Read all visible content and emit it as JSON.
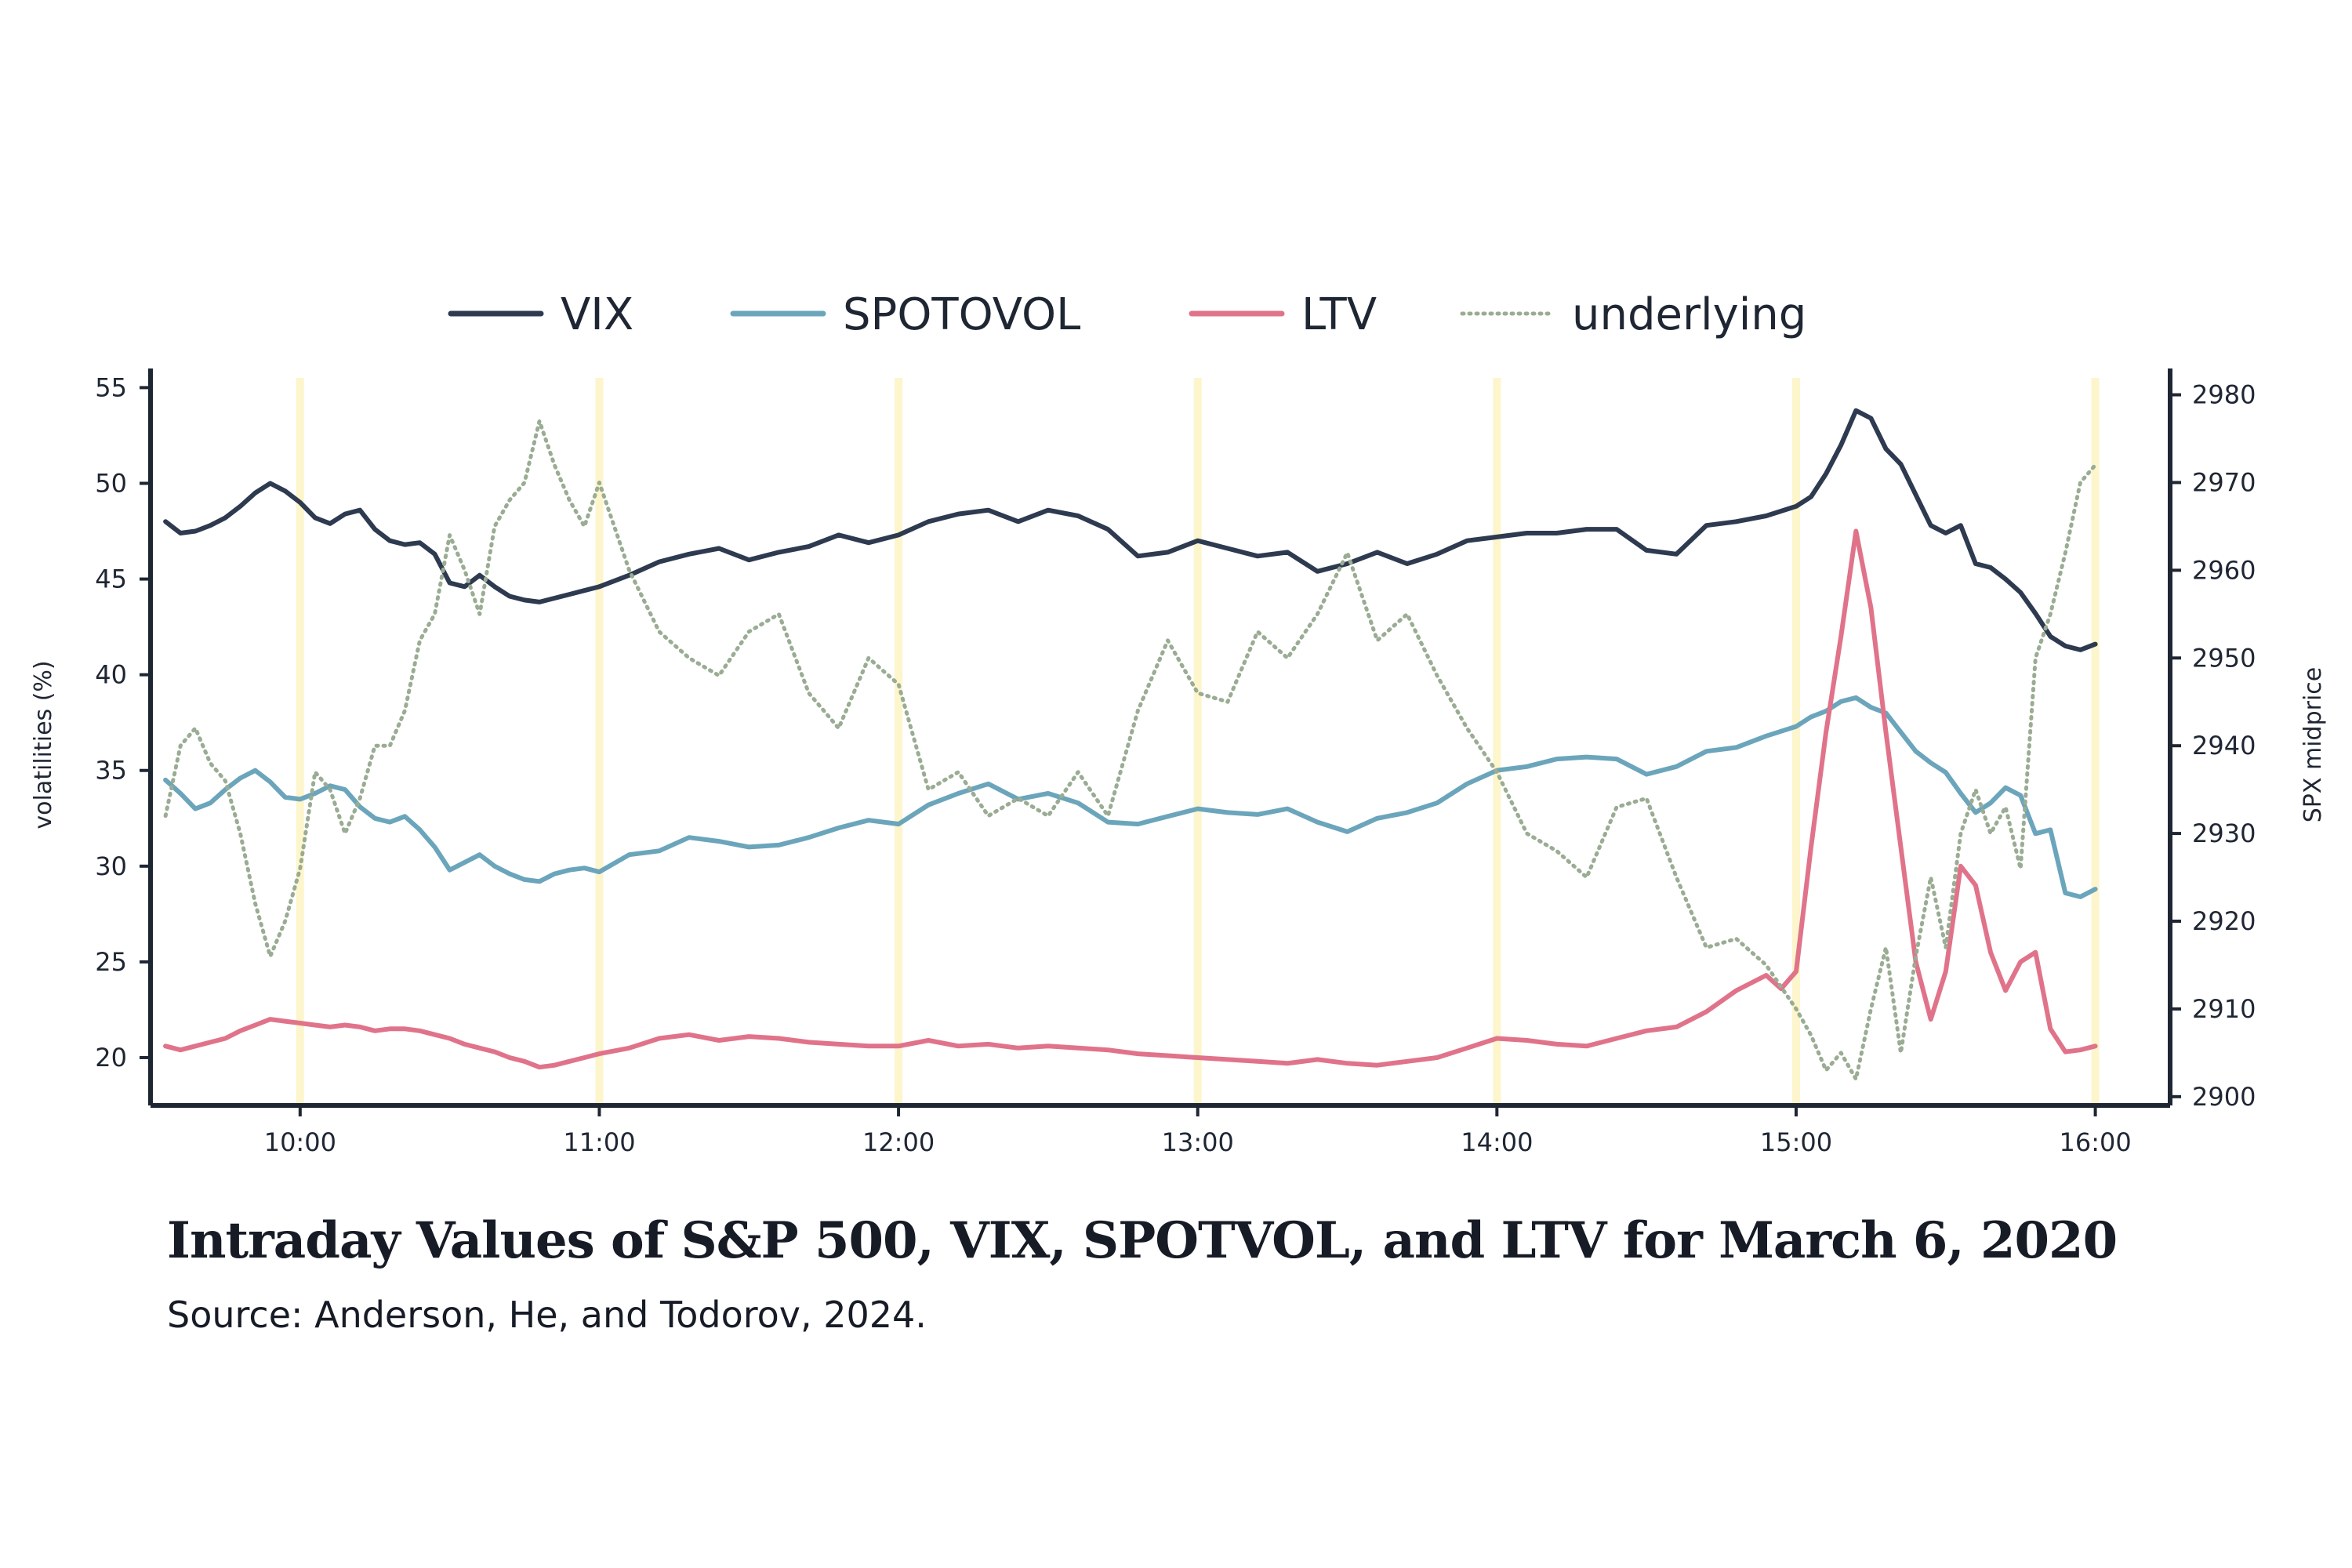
{
  "chart_data": {
    "type": "line",
    "title": "Intraday Values of S&P 500, VIX, SPOTVOL, and LTV for March 6, 2020",
    "source": "Source: Anderson, He, and Todorov, 2024.",
    "xlabel": "",
    "ylabel": "volatilities (%)",
    "y2label": "SPX midprice",
    "xlim": [
      9.5,
      16.25
    ],
    "ylim": [
      17.5,
      56
    ],
    "y2lim": [
      2899,
      2983
    ],
    "x_ticks": [
      10,
      11,
      12,
      13,
      14,
      15,
      16
    ],
    "x_tick_labels": [
      "10:00",
      "11:00",
      "12:00",
      "13:00",
      "14:00",
      "15:00",
      "16:00"
    ],
    "y_ticks": [
      20,
      25,
      30,
      35,
      40,
      45,
      50,
      55
    ],
    "y_tick_labels": [
      "20",
      "25",
      "30",
      "35",
      "40",
      "45",
      "50",
      "55"
    ],
    "y2_ticks": [
      2900,
      2910,
      2920,
      2930,
      2940,
      2950,
      2960,
      2970,
      2980
    ],
    "y2_tick_labels": [
      "2900",
      "2910",
      "2920",
      "2930",
      "2940",
      "2950",
      "2960",
      "2970",
      "2980"
    ],
    "highlight_x": [
      10,
      11,
      12,
      13,
      14,
      15,
      16
    ],
    "highlight_color": "#fdf5cc",
    "legend": [
      "VIX",
      "SPOTOVOL",
      "LTV",
      "underlying"
    ],
    "legend_position": "top-center",
    "series": [
      {
        "name": "VIX",
        "axis": "left",
        "color": "#2d3a50",
        "style": "solid",
        "x": [
          9.55,
          9.6,
          9.65,
          9.7,
          9.75,
          9.8,
          9.85,
          9.9,
          9.95,
          10.0,
          10.05,
          10.1,
          10.15,
          10.2,
          10.25,
          10.3,
          10.35,
          10.4,
          10.45,
          10.5,
          10.55,
          10.6,
          10.65,
          10.7,
          10.75,
          10.8,
          10.85,
          10.9,
          10.95,
          11.0,
          11.1,
          11.2,
          11.3,
          11.4,
          11.5,
          11.6,
          11.7,
          11.8,
          11.9,
          12.0,
          12.1,
          12.2,
          12.3,
          12.4,
          12.5,
          12.6,
          12.7,
          12.8,
          12.9,
          13.0,
          13.1,
          13.2,
          13.3,
          13.4,
          13.5,
          13.6,
          13.7,
          13.8,
          13.9,
          14.0,
          14.1,
          14.2,
          14.3,
          14.4,
          14.5,
          14.6,
          14.7,
          14.8,
          14.9,
          15.0,
          15.05,
          15.1,
          15.15,
          15.2,
          15.25,
          15.3,
          15.35,
          15.4,
          15.45,
          15.5,
          15.55,
          15.6,
          15.65,
          15.7,
          15.75,
          15.8,
          15.85,
          15.9,
          15.95,
          16.0
        ],
        "values": [
          48,
          47.4,
          47.5,
          47.8,
          48.2,
          48.8,
          49.5,
          50.0,
          49.6,
          49.0,
          48.2,
          47.9,
          48.4,
          48.6,
          47.6,
          47.0,
          46.8,
          46.9,
          46.3,
          44.8,
          44.6,
          45.2,
          44.6,
          44.1,
          43.9,
          43.8,
          44.0,
          44.2,
          44.4,
          44.6,
          45.2,
          45.9,
          46.3,
          46.6,
          46.0,
          46.4,
          46.7,
          47.3,
          46.9,
          47.3,
          48.0,
          48.4,
          48.6,
          48.0,
          48.6,
          48.3,
          47.6,
          46.2,
          46.4,
          47.0,
          46.6,
          46.2,
          46.4,
          45.4,
          45.8,
          46.4,
          45.8,
          46.3,
          47.0,
          47.2,
          47.4,
          47.4,
          47.6,
          47.6,
          46.5,
          46.3,
          47.8,
          48.0,
          48.3,
          48.8,
          49.3,
          50.5,
          52.0,
          53.8,
          53.4,
          51.8,
          51.0,
          49.4,
          47.8,
          47.4,
          47.8,
          45.8,
          45.6,
          45.0,
          44.3,
          43.2,
          42.0,
          41.5,
          41.3,
          41.6
        ]
      },
      {
        "name": "SPOTOVOL",
        "axis": "left",
        "color": "#6ba5bb",
        "style": "solid",
        "x": [
          9.55,
          9.6,
          9.65,
          9.7,
          9.75,
          9.8,
          9.85,
          9.9,
          9.95,
          10.0,
          10.05,
          10.1,
          10.15,
          10.2,
          10.25,
          10.3,
          10.35,
          10.4,
          10.45,
          10.5,
          10.55,
          10.6,
          10.65,
          10.7,
          10.75,
          10.8,
          10.85,
          10.9,
          10.95,
          11.0,
          11.1,
          11.2,
          11.3,
          11.4,
          11.5,
          11.6,
          11.7,
          11.8,
          11.9,
          12.0,
          12.1,
          12.2,
          12.3,
          12.4,
          12.5,
          12.6,
          12.7,
          12.8,
          12.9,
          13.0,
          13.1,
          13.2,
          13.3,
          13.4,
          13.5,
          13.6,
          13.7,
          13.8,
          13.9,
          14.0,
          14.1,
          14.2,
          14.3,
          14.4,
          14.5,
          14.6,
          14.7,
          14.8,
          14.9,
          15.0,
          15.05,
          15.1,
          15.15,
          15.2,
          15.25,
          15.3,
          15.35,
          15.4,
          15.45,
          15.5,
          15.55,
          15.6,
          15.65,
          15.7,
          15.75,
          15.8,
          15.85,
          15.9,
          15.95,
          16.0
        ],
        "values": [
          34.5,
          33.8,
          33.0,
          33.3,
          34.0,
          34.6,
          35.0,
          34.4,
          33.6,
          33.5,
          33.8,
          34.2,
          34.0,
          33.1,
          32.5,
          32.3,
          32.6,
          31.9,
          31.0,
          29.8,
          30.2,
          30.6,
          30.0,
          29.6,
          29.3,
          29.2,
          29.6,
          29.8,
          29.9,
          29.7,
          30.6,
          30.8,
          31.5,
          31.3,
          31.0,
          31.1,
          31.5,
          32.0,
          32.4,
          32.2,
          33.2,
          33.8,
          34.3,
          33.5,
          33.8,
          33.3,
          32.3,
          32.2,
          32.6,
          33.0,
          32.8,
          32.7,
          33.0,
          32.3,
          31.8,
          32.5,
          32.8,
          33.3,
          34.3,
          35.0,
          35.2,
          35.6,
          35.7,
          35.6,
          34.8,
          35.2,
          36.0,
          36.2,
          36.8,
          37.3,
          37.8,
          38.1,
          38.6,
          38.8,
          38.3,
          38.0,
          37.0,
          36.0,
          35.4,
          34.9,
          33.8,
          32.8,
          33.3,
          34.1,
          33.7,
          31.7,
          31.9,
          28.6,
          28.4,
          28.8
        ]
      },
      {
        "name": "LTV",
        "axis": "left",
        "color": "#e0738a",
        "style": "solid",
        "x": [
          9.55,
          9.6,
          9.65,
          9.7,
          9.75,
          9.8,
          9.85,
          9.9,
          9.95,
          10.0,
          10.05,
          10.1,
          10.15,
          10.2,
          10.25,
          10.3,
          10.35,
          10.4,
          10.45,
          10.5,
          10.55,
          10.6,
          10.65,
          10.7,
          10.75,
          10.8,
          10.85,
          10.9,
          10.95,
          11.0,
          11.1,
          11.2,
          11.3,
          11.4,
          11.5,
          11.6,
          11.7,
          11.8,
          11.9,
          12.0,
          12.1,
          12.2,
          12.3,
          12.4,
          12.5,
          12.6,
          12.7,
          12.8,
          12.9,
          13.0,
          13.1,
          13.2,
          13.3,
          13.4,
          13.5,
          13.6,
          13.7,
          13.8,
          13.9,
          14.0,
          14.1,
          14.2,
          14.3,
          14.4,
          14.5,
          14.6,
          14.7,
          14.8,
          14.9,
          14.95,
          15.0,
          15.05,
          15.1,
          15.15,
          15.2,
          15.25,
          15.3,
          15.35,
          15.4,
          15.45,
          15.5,
          15.55,
          15.6,
          15.65,
          15.7,
          15.75,
          15.8,
          15.85,
          15.9,
          15.95,
          16.0
        ],
        "values": [
          20.6,
          20.4,
          20.6,
          20.8,
          21.0,
          21.4,
          21.7,
          22.0,
          21.9,
          21.8,
          21.7,
          21.6,
          21.7,
          21.6,
          21.4,
          21.5,
          21.5,
          21.4,
          21.2,
          21.0,
          20.7,
          20.5,
          20.3,
          20.0,
          19.8,
          19.5,
          19.6,
          19.8,
          20.0,
          20.2,
          20.5,
          21.0,
          21.2,
          20.9,
          21.1,
          21.0,
          20.8,
          20.7,
          20.6,
          20.6,
          20.9,
          20.6,
          20.7,
          20.5,
          20.6,
          20.5,
          20.4,
          20.2,
          20.1,
          20.0,
          19.9,
          19.8,
          19.7,
          19.9,
          19.7,
          19.6,
          19.8,
          20.0,
          20.5,
          21.0,
          20.9,
          20.7,
          20.6,
          21.0,
          21.4,
          21.6,
          22.4,
          23.5,
          24.3,
          23.6,
          24.5,
          31.0,
          37.0,
          42.0,
          47.5,
          43.5,
          37.0,
          31.0,
          25.0,
          22.0,
          24.5,
          30.0,
          29.0,
          25.5,
          23.5,
          25.0,
          25.5,
          21.5,
          20.3,
          20.4,
          20.6
        ]
      },
      {
        "name": "underlying",
        "axis": "right",
        "color": "#9aac93",
        "style": "dotted",
        "x": [
          9.55,
          9.6,
          9.65,
          9.7,
          9.75,
          9.8,
          9.85,
          9.9,
          9.95,
          10.0,
          10.05,
          10.1,
          10.15,
          10.2,
          10.25,
          10.3,
          10.35,
          10.4,
          10.45,
          10.5,
          10.55,
          10.6,
          10.65,
          10.7,
          10.75,
          10.8,
          10.85,
          10.9,
          10.95,
          11.0,
          11.1,
          11.2,
          11.3,
          11.4,
          11.5,
          11.6,
          11.7,
          11.8,
          11.9,
          12.0,
          12.1,
          12.2,
          12.3,
          12.4,
          12.5,
          12.6,
          12.7,
          12.8,
          12.9,
          13.0,
          13.1,
          13.2,
          13.3,
          13.4,
          13.5,
          13.6,
          13.7,
          13.8,
          13.9,
          14.0,
          14.1,
          14.2,
          14.3,
          14.4,
          14.5,
          14.6,
          14.7,
          14.8,
          14.9,
          15.0,
          15.05,
          15.1,
          15.15,
          15.2,
          15.25,
          15.3,
          15.35,
          15.4,
          15.45,
          15.5,
          15.55,
          15.6,
          15.65,
          15.7,
          15.75,
          15.8,
          15.85,
          15.9,
          15.95,
          16.0
        ],
        "values": [
          2932,
          2940,
          2942,
          2938,
          2936,
          2930,
          2922,
          2916,
          2920,
          2926,
          2937,
          2935,
          2930,
          2934,
          2940,
          2940,
          2944,
          2952,
          2955,
          2964,
          2960,
          2955,
          2965,
          2968,
          2970,
          2977,
          2972,
          2968,
          2965,
          2970,
          2960,
          2953,
          2950,
          2948,
          2953,
          2955,
          2946,
          2942,
          2950,
          2947,
          2935,
          2937,
          2932,
          2934,
          2932,
          2937,
          2932,
          2944,
          2952,
          2946,
          2945,
          2953,
          2950,
          2955,
          2962,
          2952,
          2955,
          2948,
          2942,
          2937,
          2930,
          2928,
          2925,
          2933,
          2934,
          2925,
          2917,
          2918,
          2915,
          2910,
          2907,
          2903,
          2905,
          2902,
          2910,
          2917,
          2905,
          2916,
          2925,
          2917,
          2930,
          2935,
          2930,
          2933,
          2926,
          2950,
          2955,
          2962,
          2970,
          2972
        ]
      }
    ]
  }
}
